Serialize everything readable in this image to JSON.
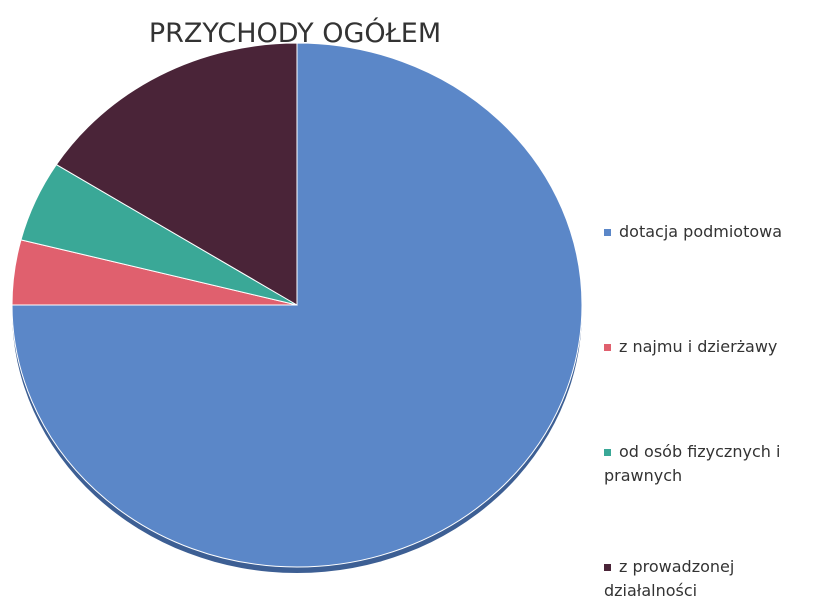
{
  "chart_data": {
    "type": "pie",
    "title": "PRZYCHODY OGÓŁEM",
    "categories": [
      "dotacja podmiotowa",
      "z najmu i dzierżawy",
      "od osób fizycznych i prawnych",
      "z prowadzonej działalności"
    ],
    "values": [
      75,
      4,
      5,
      16
    ],
    "colors": [
      "#5b87c8",
      "#e0606e",
      "#3aa897",
      "#4a2438"
    ],
    "legend": "right"
  }
}
